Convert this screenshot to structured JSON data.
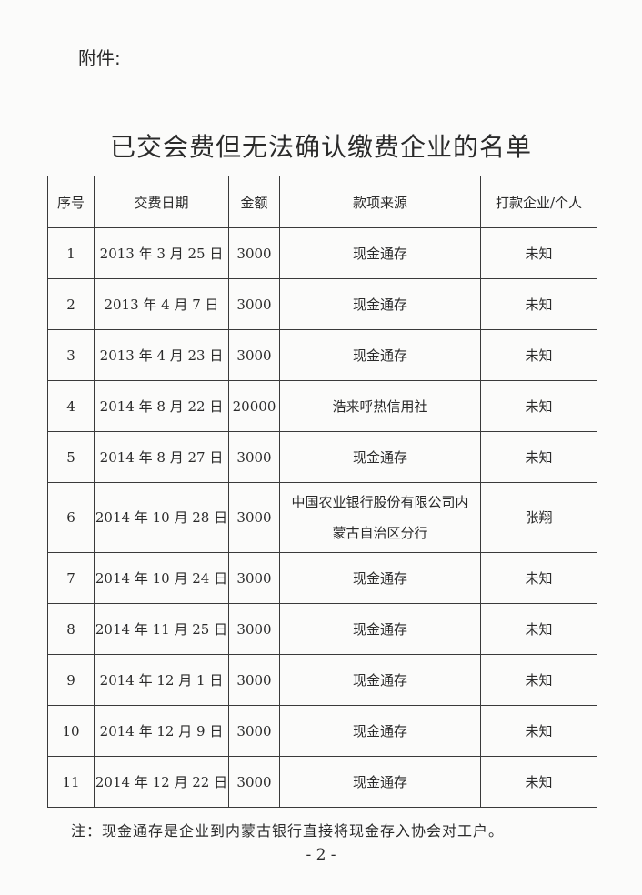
{
  "attachment_label": "附件:",
  "title": "已交会费但无法确认缴费企业的名单",
  "table": {
    "headers": [
      "序号",
      "交费日期",
      "金额",
      "款项来源",
      "打款企业/个人"
    ],
    "rows": [
      [
        "1",
        "2013 年 3 月 25 日",
        "3000",
        "现金通存",
        "未知"
      ],
      [
        "2",
        "2013 年 4 月 7 日",
        "3000",
        "现金通存",
        "未知"
      ],
      [
        "3",
        "2013 年 4 月 23 日",
        "3000",
        "现金通存",
        "未知"
      ],
      [
        "4",
        "2014 年 8 月 22 日",
        "20000",
        "浩来呼热信用社",
        "未知"
      ],
      [
        "5",
        "2014 年 8 月 27 日",
        "3000",
        "现金通存",
        "未知"
      ],
      [
        "6",
        "2014 年 10 月 28 日",
        "3000",
        "中国农业银行股份有限公司内蒙古自治区分行",
        "张翔"
      ],
      [
        "7",
        "2014 年 10 月 24 日",
        "3000",
        "现金通存",
        "未知"
      ],
      [
        "8",
        "2014 年 11 月 25 日",
        "3000",
        "现金通存",
        "未知"
      ],
      [
        "9",
        "2014 年 12 月 1 日",
        "3000",
        "现金通存",
        "未知"
      ],
      [
        "10",
        "2014 年 12 月 9 日",
        "3000",
        "现金通存",
        "未知"
      ],
      [
        "11",
        "2014 年 12 月 22 日",
        "3000",
        "现金通存",
        "未知"
      ]
    ]
  },
  "note": "注：现金通存是企业到内蒙古银行直接将现金存入协会对工户。",
  "page_number": "- 2 -"
}
